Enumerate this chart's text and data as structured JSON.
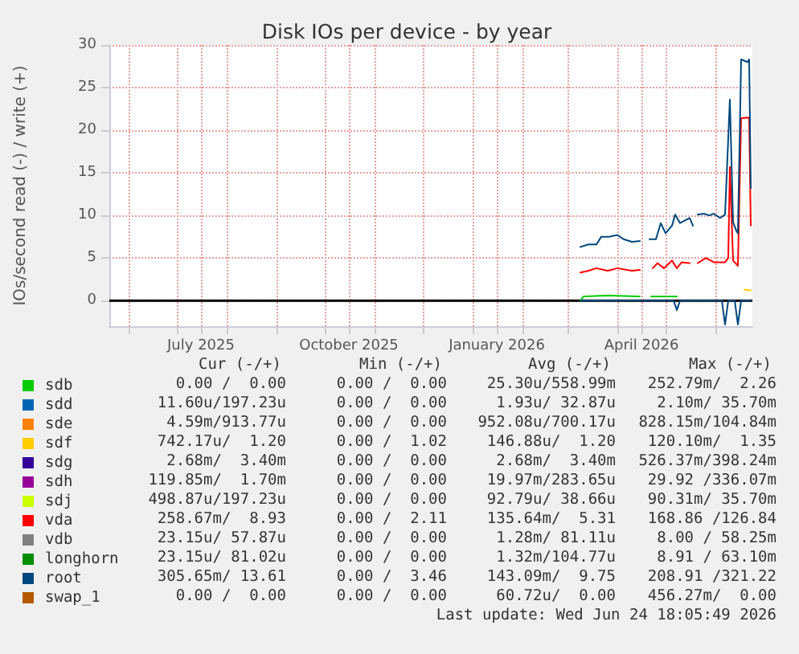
{
  "chart_data": {
    "type": "line",
    "title": "Disk IOs per device - by year",
    "ylabel": "IOs/second read (-) / write (+)",
    "xlim": [
      "2025-05-20",
      "2026-06-24"
    ],
    "xticks": [
      {
        "value": "2025-06-01",
        "label": null
      },
      {
        "value": "2025-07-01",
        "label": null
      },
      {
        "value": "2025-07-16",
        "label": "July 2025"
      },
      {
        "value": "2025-08-01",
        "label": null
      },
      {
        "value": "2025-09-01",
        "label": null
      },
      {
        "value": "2025-10-01",
        "label": null
      },
      {
        "value": "2025-10-16",
        "label": "October 2025"
      },
      {
        "value": "2025-11-01",
        "label": null
      },
      {
        "value": "2025-12-01",
        "label": null
      },
      {
        "value": "2026-01-01",
        "label": null
      },
      {
        "value": "2026-01-16",
        "label": "January 2026"
      },
      {
        "value": "2026-02-01",
        "label": null
      },
      {
        "value": "2026-03-01",
        "label": null
      },
      {
        "value": "2026-04-01",
        "label": null
      },
      {
        "value": "2026-04-16",
        "label": "April 2026"
      },
      {
        "value": "2026-05-01",
        "label": null
      },
      {
        "value": "2026-06-01",
        "label": null
      }
    ],
    "ylim": [
      -3,
      30
    ],
    "yticks": [
      0,
      5,
      10,
      15,
      20,
      25,
      30
    ],
    "grid": true,
    "legend": "bottom",
    "ref_lines": [
      {
        "axis": "y",
        "value": 0,
        "color": "#000000"
      }
    ],
    "series": [
      {
        "name": "sdb",
        "color": "#00cc00",
        "x": [
          "2026-03-09",
          "2026-03-11",
          "2026-03-27",
          "2026-04-15",
          "2026-04-18",
          "2026-04-22",
          "2026-05-08"
        ],
        "values": [
          0,
          0.5,
          0.6,
          0.5,
          null,
          0.5,
          0.5
        ]
      },
      {
        "name": "sdd",
        "color": "#0066b3"
      },
      {
        "name": "sde",
        "color": "#ff8000"
      },
      {
        "name": "sdf",
        "color": "#ffcc00",
        "x": [
          "2026-06-19",
          "2026-06-23"
        ],
        "values": [
          1.3,
          1.2
        ]
      },
      {
        "name": "sdg",
        "color": "#330099"
      },
      {
        "name": "sdh",
        "color": "#990099"
      },
      {
        "name": "sdj",
        "color": "#ccff00"
      },
      {
        "name": "vda",
        "color": "#ff0000",
        "x": [
          "2026-03-09",
          "2026-03-14",
          "2026-03-19",
          "2026-03-26",
          "2026-04-01",
          "2026-04-10",
          "2026-04-15",
          "2026-04-18",
          "2026-04-23",
          "2026-04-26",
          "2026-04-30",
          "2026-05-05",
          "2026-05-08",
          "2026-05-11",
          "2026-05-16",
          "2026-05-20",
          "2026-05-21",
          "2026-05-26",
          "2026-05-31",
          "2026-06-07",
          "2026-06-09",
          "2026-06-10",
          "2026-06-12",
          "2026-06-15",
          "2026-06-17",
          "2026-06-21",
          "2026-06-22",
          "2026-06-23"
        ],
        "values": [
          3.3,
          3.5,
          3.8,
          3.5,
          3.8,
          3.5,
          3.6,
          null,
          3.8,
          4.4,
          3.8,
          4.7,
          3.8,
          4.5,
          4.4,
          null,
          4.4,
          5.0,
          4.5,
          4.5,
          5.0,
          15.7,
          4.7,
          4.1,
          21.4,
          21.5,
          21.4,
          8.8
        ]
      },
      {
        "name": "vdb",
        "color": "#808080"
      },
      {
        "name": "longhorn",
        "color": "#008f00"
      },
      {
        "name": "root",
        "color": "#00487d",
        "x": [
          "2026-03-09",
          "2026-03-14",
          "2026-03-19",
          "2026-03-22",
          "2026-03-27",
          "2026-04-01",
          "2026-04-05",
          "2026-04-10",
          "2026-04-15",
          "2026-04-18",
          "2026-04-21",
          "2026-04-25",
          "2026-04-28",
          "2026-05-01",
          "2026-05-05",
          "2026-05-07",
          "2026-05-10",
          "2026-05-13",
          "2026-05-16",
          "2026-05-18",
          "2026-05-20",
          "2026-05-21",
          "2026-05-25",
          "2026-05-28",
          "2026-05-31",
          "2026-06-04",
          "2026-06-07",
          "2026-06-10",
          "2026-06-12",
          "2026-06-14",
          "2026-06-15",
          "2026-06-17",
          "2026-06-21",
          "2026-06-22",
          "2026-06-23"
        ],
        "values": [
          6.3,
          6.6,
          6.6,
          7.5,
          7.5,
          7.7,
          7.2,
          6.9,
          7.0,
          null,
          7.2,
          7.2,
          9.1,
          7.9,
          8.8,
          10.1,
          9.1,
          9.4,
          9.7,
          8.8,
          null,
          10.1,
          10.2,
          10.0,
          10.2,
          9.7,
          10.1,
          23.6,
          9.2,
          8.2,
          7.9,
          28.3,
          28.0,
          28.3,
          13.2
        ]
      },
      {
        "name": "swap_1",
        "color": "#b35a00"
      },
      {
        "color": "#00487d",
        "x": [
          "2026-03-09",
          "2026-05-06",
          "2026-05-08",
          "2026-05-10",
          "2026-06-05",
          "2026-06-07",
          "2026-06-09",
          "2026-06-13",
          "2026-06-15",
          "2026-06-17",
          "2026-06-23"
        ],
        "values": [
          0,
          0,
          -1.1,
          0,
          0,
          -2.8,
          0,
          0,
          -2.8,
          0,
          0
        ]
      }
    ],
    "annotations": [
      "Cur (-/+)",
      "Min (-/+)",
      "Avg (-/+)",
      "Max (-/+)",
      "0.00 /  0.00",
      "0.00 /  0.00",
      "25.30u/558.99m",
      "252.79m/  2.26",
      "11.60u/197.23u",
      "0.00 /  0.00",
      "1.93u/ 32.87u",
      "2.10m/ 35.70m",
      "4.59m/913.77u",
      "0.00 /  0.00",
      "952.08u/700.17u",
      "828.15m/104.84m",
      "742.17u/  1.20",
      "0.00 /  1.02",
      "146.88u/  1.20",
      "120.10m/  1.35",
      "2.68m/  3.40m",
      "0.00 /  0.00",
      "2.68m/  3.40m",
      "526.37m/398.24m",
      "119.85m/  1.70m",
      "0.00 /  0.00",
      "19.97m/283.65u",
      "29.92 /336.07m",
      "498.87u/197.23u",
      "0.00 /  0.00",
      "92.79u/ 38.66u",
      "90.31m/ 35.70m",
      "258.67m/  8.93",
      "0.00 /  2.11",
      "135.64m/  5.31",
      "168.86 /126.84",
      "23.15u/ 57.87u",
      "0.00 /  0.00",
      "1.28m/ 81.11u",
      "8.00 / 58.25m",
      "23.15u/ 81.02u",
      "0.00 /  0.00",
      "1.32m/104.77u",
      "8.91 / 63.10m",
      "305.65m/ 13.61",
      "0.00 /  3.46",
      "143.09m/  9.75",
      "208.91 /321.22",
      "0.00 /  0.00",
      "0.00 /  0.00",
      "60.72u/  0.00",
      "456.27m/  0.00",
      "Last update: Wed Jun 24 18:05:49 2026"
    ]
  }
}
